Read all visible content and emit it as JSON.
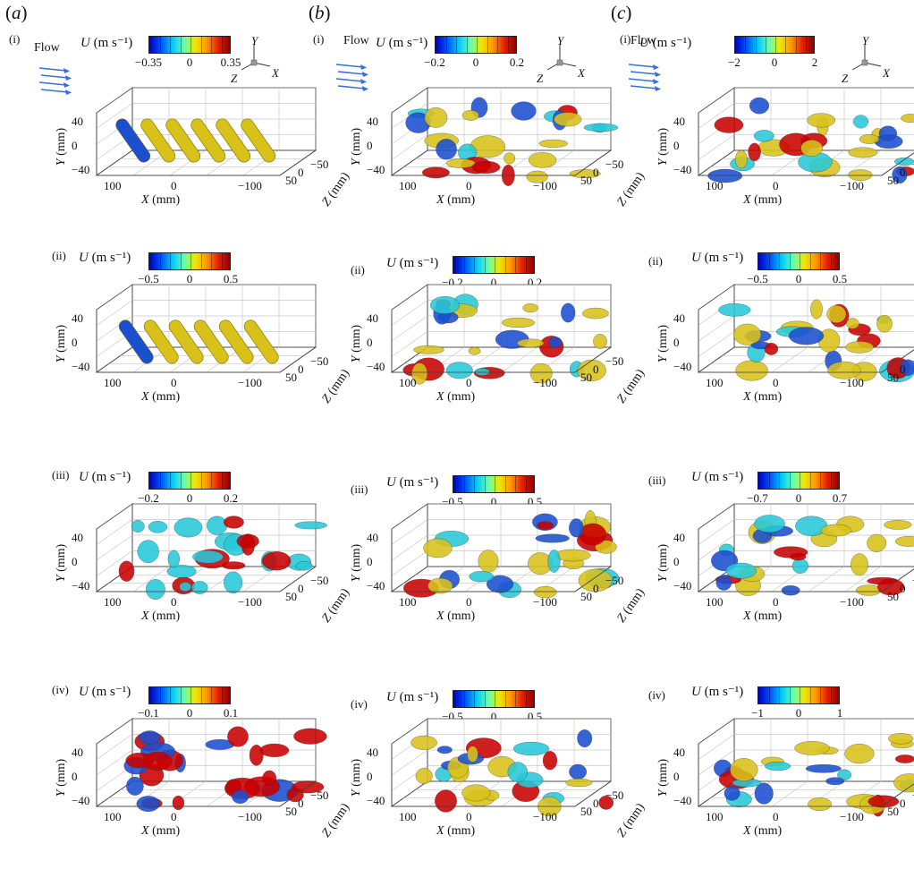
{
  "figure": {
    "columns": [
      {
        "letter": "a"
      },
      {
        "letter": "b"
      },
      {
        "letter": "c"
      }
    ],
    "flow_label": "Flow",
    "axes_triad": {
      "x": "X",
      "y": "Y",
      "z": "Z"
    },
    "colorbar_title_var": "U",
    "colorbar_title_unit": "(m s⁻¹)",
    "axis_labels": {
      "x": "X",
      "y": "Y",
      "z": "Z",
      "unit": "(mm)"
    },
    "y_ticks": [
      "40",
      "0",
      "−40"
    ],
    "x_ticks": [
      "100",
      "0",
      "−100"
    ],
    "z_ticks": [
      "50",
      "0",
      "−50"
    ],
    "colors": {
      "colormap": [
        "#0000b4",
        "#0050ff",
        "#00c8ff",
        "#5fffb4",
        "#f0e600",
        "#ff9600",
        "#e61e00",
        "#8c0000"
      ],
      "flow_arrow": "#3a6fd8",
      "iso_yellow": "#d8c21a",
      "iso_blue": "#1a4fd0",
      "iso_cyan": "#27c8d8",
      "iso_red": "#c80000"
    },
    "panels": [
      {
        "col": 0,
        "row": 0,
        "roman": "(i)",
        "cb_min": "−0.35",
        "cb_mid": "0",
        "cb_max": "0.35"
      },
      {
        "col": 0,
        "row": 1,
        "roman": "(ii)",
        "cb_min": "−0.5",
        "cb_mid": "0",
        "cb_max": "0.5"
      },
      {
        "col": 0,
        "row": 2,
        "roman": "(iii)",
        "cb_min": "−0.2",
        "cb_mid": "0",
        "cb_max": "0.2"
      },
      {
        "col": 0,
        "row": 3,
        "roman": "(iv)",
        "cb_min": "−0.1",
        "cb_mid": "0",
        "cb_max": "0.1"
      },
      {
        "col": 1,
        "row": 0,
        "roman": "(i)",
        "cb_min": "−0.2",
        "cb_mid": "0",
        "cb_max": "0.2"
      },
      {
        "col": 1,
        "row": 1,
        "roman": "(ii)",
        "cb_min": "−0.2",
        "cb_mid": "0",
        "cb_max": "0.2"
      },
      {
        "col": 1,
        "row": 2,
        "roman": "(iii)",
        "cb_min": "−0.5",
        "cb_mid": "0",
        "cb_max": "0.5"
      },
      {
        "col": 1,
        "row": 3,
        "roman": "(iv)",
        "cb_min": "−0.5",
        "cb_mid": "0",
        "cb_max": "0.5"
      },
      {
        "col": 2,
        "row": 0,
        "roman": "(i)",
        "cb_min": "−2",
        "cb_mid": "0",
        "cb_max": "2"
      },
      {
        "col": 2,
        "row": 1,
        "roman": "(ii)",
        "cb_min": "−0.5",
        "cb_mid": "0",
        "cb_max": "0.5"
      },
      {
        "col": 2,
        "row": 2,
        "roman": "(iii)",
        "cb_min": "−0.7",
        "cb_mid": "0",
        "cb_max": "0.7"
      },
      {
        "col": 2,
        "row": 3,
        "roman": "(iv)",
        "cb_min": "−1",
        "cb_mid": "0",
        "cb_max": "1"
      }
    ]
  }
}
